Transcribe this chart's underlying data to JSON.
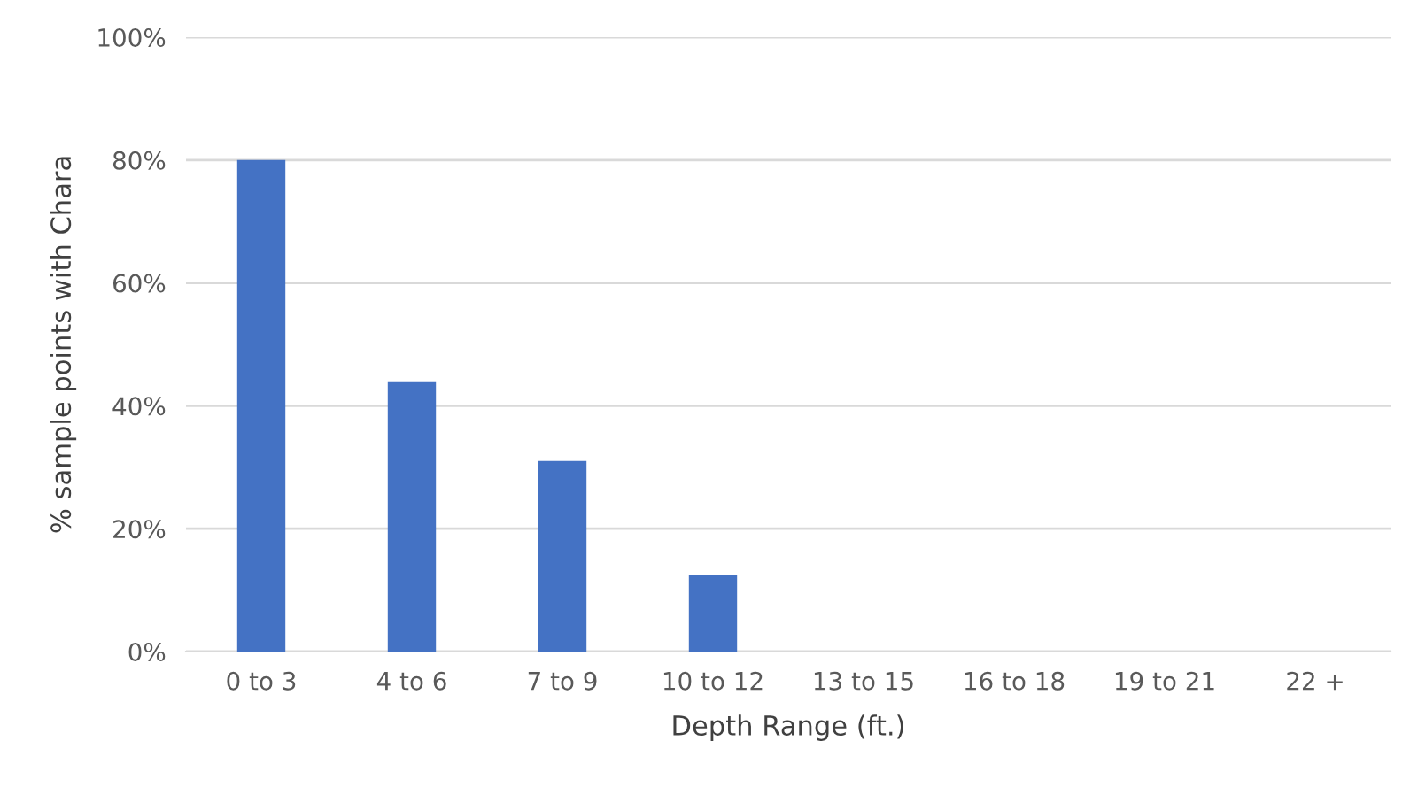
{
  "chart_data": {
    "type": "bar",
    "xlabel": "Depth Range (ft.)",
    "ylabel": "% sample points with Chara",
    "categories": [
      "0 to 3",
      "4 to 6",
      "7 to 9",
      "10 to 12",
      "13 to 15",
      "16 to 18",
      "19 to 21",
      "22 +"
    ],
    "values": [
      80,
      44,
      31,
      12.5,
      0,
      0,
      0,
      0
    ],
    "color": "#4472c4",
    "ylim": [
      0,
      100
    ],
    "yticks": [
      {
        "value": 0,
        "label": "0%"
      },
      {
        "value": 20,
        "label": "20%"
      },
      {
        "value": 40,
        "label": "40%"
      },
      {
        "value": 60,
        "label": "60%"
      },
      {
        "value": 80,
        "label": "80%"
      },
      {
        "value": 100,
        "label": "100%"
      }
    ],
    "grid": "y",
    "legend": false
  }
}
